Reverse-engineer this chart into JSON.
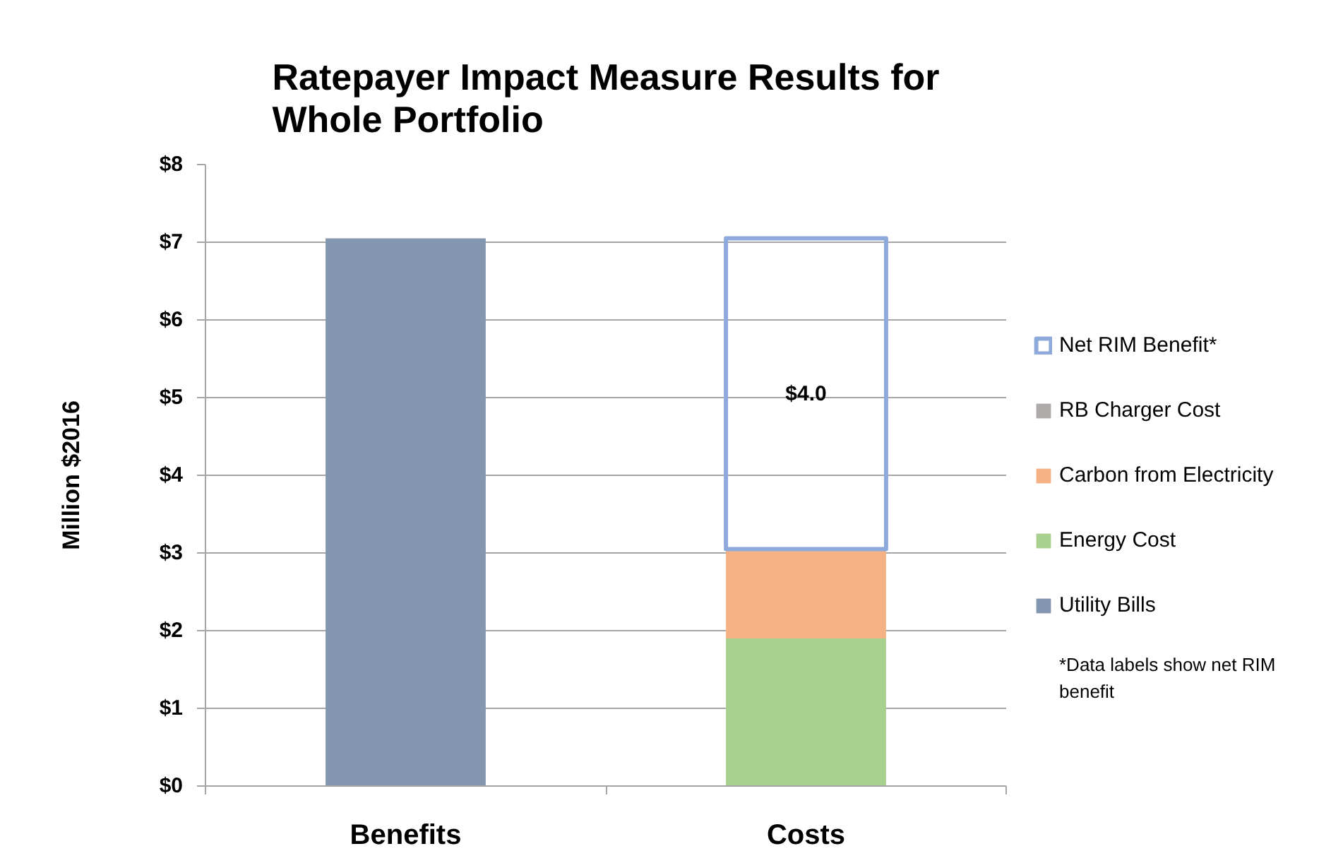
{
  "chart_data": {
    "type": "bar",
    "title": "Ratepayer Impact Measure Results for Whole Portfolio",
    "ylabel": "Million $2016",
    "categories": [
      "Benefits",
      "Costs"
    ],
    "stacked": true,
    "series": [
      {
        "name": "Utility Bills",
        "color": "#8497b0",
        "values": [
          7.05,
          null
        ]
      },
      {
        "name": "Energy Cost",
        "color": "#a9d18e",
        "values": [
          null,
          1.9
        ]
      },
      {
        "name": "Carbon from Electricity",
        "color": "#f4b183",
        "values": [
          null,
          1.15
        ]
      },
      {
        "name": "RB Charger Cost",
        "color": "#aeaaaa",
        "values": [
          null,
          null
        ]
      },
      {
        "name": "Net RIM Benefit*",
        "color": "#8eaadb",
        "line_style": "solid",
        "values": [
          null,
          4.0
        ],
        "value_labels": [
          null,
          "$4.0"
        ]
      }
    ],
    "ylim": [
      0,
      8
    ],
    "yticks": [
      {
        "value": 0,
        "label": "$0"
      },
      {
        "value": 1,
        "label": "$1"
      },
      {
        "value": 2,
        "label": "$2"
      },
      {
        "value": 3,
        "label": "$3"
      },
      {
        "value": 4,
        "label": "$4"
      },
      {
        "value": 5,
        "label": "$5"
      },
      {
        "value": 6,
        "label": "$6"
      },
      {
        "value": 7,
        "label": "$7"
      },
      {
        "value": 8,
        "label": "$8"
      }
    ],
    "grid": "y",
    "legend": "right",
    "annotations": [
      "*Data labels show net RIM benefit"
    ]
  }
}
